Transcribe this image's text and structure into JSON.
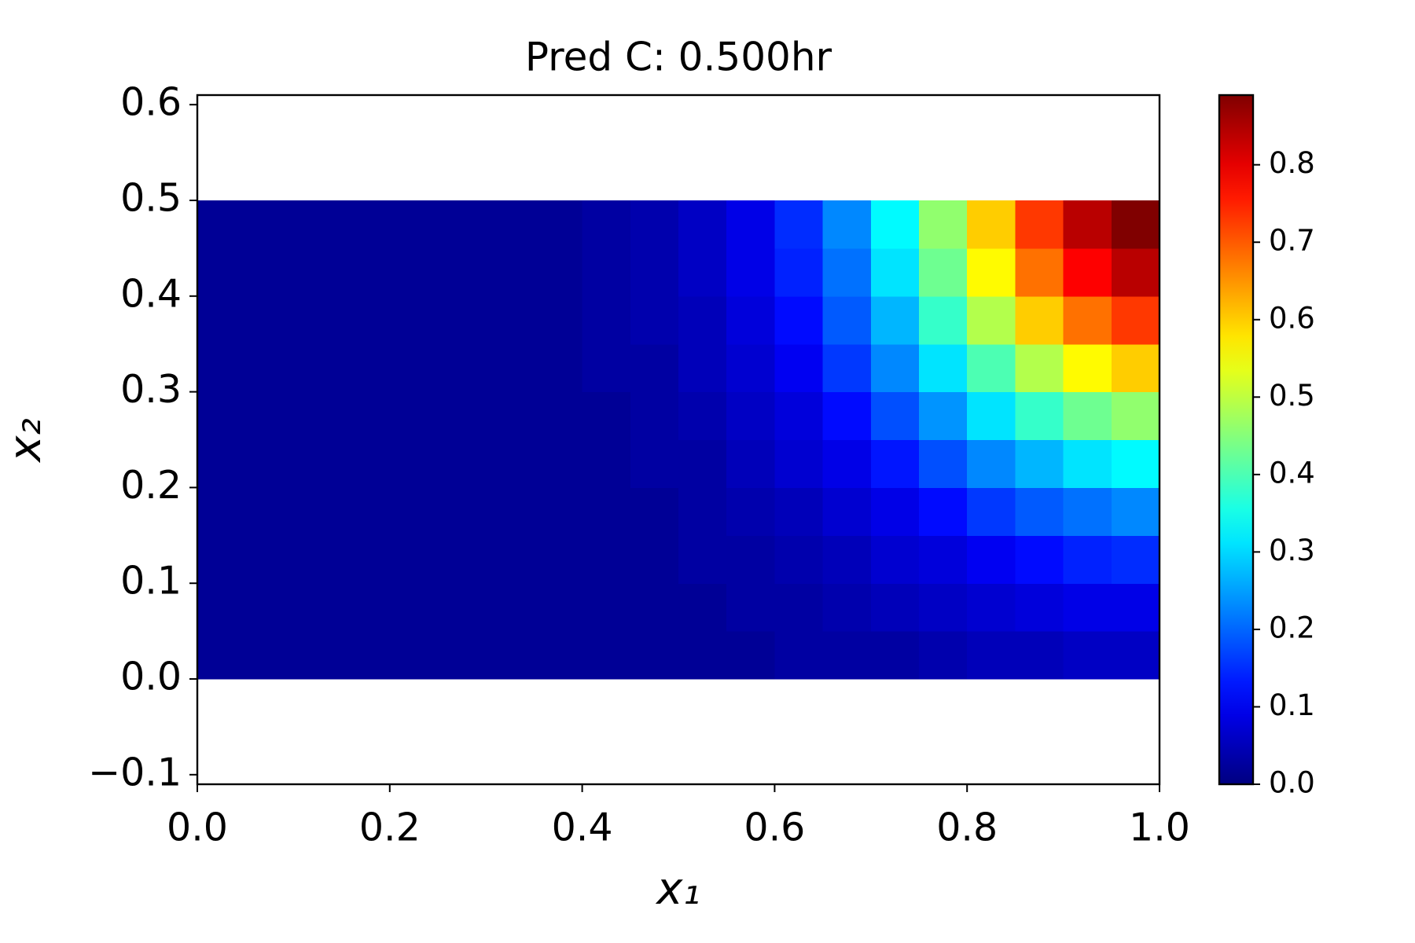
{
  "chart_data": {
    "type": "heatmap",
    "title": "Pred C:  0.500hr",
    "x_label": "x₁",
    "y_label": "x₂",
    "colormap": "jet",
    "x": [
      0.025,
      0.075,
      0.125,
      0.175,
      0.225,
      0.275,
      0.325,
      0.375,
      0.425,
      0.475,
      0.525,
      0.575,
      0.625,
      0.675,
      0.725,
      0.775,
      0.825,
      0.875,
      0.925,
      0.975
    ],
    "y": [
      0.025,
      0.075,
      0.125,
      0.175,
      0.225,
      0.275,
      0.325,
      0.375,
      0.425,
      0.475
    ],
    "z": [
      [
        0.02,
        0.02,
        0.02,
        0.02,
        0.02,
        0.02,
        0.02,
        0.02,
        0.02,
        0.02,
        0.02,
        0.02,
        0.03,
        0.03,
        0.03,
        0.04,
        0.05,
        0.05,
        0.06,
        0.06
      ],
      [
        0.02,
        0.02,
        0.02,
        0.02,
        0.02,
        0.02,
        0.02,
        0.02,
        0.02,
        0.02,
        0.02,
        0.03,
        0.03,
        0.04,
        0.05,
        0.06,
        0.07,
        0.08,
        0.09,
        0.09
      ],
      [
        0.02,
        0.02,
        0.02,
        0.02,
        0.02,
        0.02,
        0.02,
        0.02,
        0.02,
        0.02,
        0.03,
        0.03,
        0.04,
        0.05,
        0.07,
        0.08,
        0.1,
        0.12,
        0.14,
        0.15
      ],
      [
        0.02,
        0.02,
        0.02,
        0.02,
        0.02,
        0.02,
        0.02,
        0.02,
        0.02,
        0.02,
        0.03,
        0.04,
        0.05,
        0.07,
        0.09,
        0.12,
        0.16,
        0.19,
        0.21,
        0.23
      ],
      [
        0.02,
        0.02,
        0.02,
        0.02,
        0.02,
        0.02,
        0.02,
        0.02,
        0.02,
        0.03,
        0.03,
        0.05,
        0.07,
        0.09,
        0.13,
        0.18,
        0.23,
        0.27,
        0.31,
        0.33
      ],
      [
        0.02,
        0.02,
        0.02,
        0.02,
        0.02,
        0.02,
        0.02,
        0.02,
        0.02,
        0.03,
        0.04,
        0.06,
        0.08,
        0.12,
        0.18,
        0.24,
        0.31,
        0.38,
        0.43,
        0.46
      ],
      [
        0.02,
        0.02,
        0.02,
        0.02,
        0.02,
        0.02,
        0.02,
        0.02,
        0.03,
        0.03,
        0.05,
        0.07,
        0.1,
        0.16,
        0.23,
        0.31,
        0.4,
        0.49,
        0.56,
        0.6
      ],
      [
        0.02,
        0.02,
        0.02,
        0.02,
        0.02,
        0.02,
        0.02,
        0.02,
        0.03,
        0.04,
        0.05,
        0.08,
        0.12,
        0.19,
        0.27,
        0.38,
        0.49,
        0.6,
        0.68,
        0.73
      ],
      [
        0.02,
        0.02,
        0.02,
        0.02,
        0.02,
        0.02,
        0.02,
        0.02,
        0.03,
        0.04,
        0.06,
        0.09,
        0.14,
        0.21,
        0.31,
        0.43,
        0.56,
        0.68,
        0.78,
        0.84
      ],
      [
        0.02,
        0.02,
        0.02,
        0.02,
        0.02,
        0.02,
        0.02,
        0.02,
        0.03,
        0.04,
        0.06,
        0.09,
        0.15,
        0.23,
        0.33,
        0.46,
        0.6,
        0.73,
        0.84,
        0.89
      ]
    ],
    "xlim": [
      0,
      1
    ],
    "ylim": [
      -0.11,
      0.61
    ],
    "xticks": [
      {
        "value": 0,
        "label": "0.0"
      },
      {
        "value": 0.2,
        "label": "0.2"
      },
      {
        "value": 0.4,
        "label": "0.4"
      },
      {
        "value": 0.6,
        "label": "0.6"
      },
      {
        "value": 0.8,
        "label": "0.8"
      },
      {
        "value": 1,
        "label": "1.0"
      }
    ],
    "yticks": [
      {
        "value": -0.1,
        "label": "−0.1"
      },
      {
        "value": 0,
        "label": "0.0"
      },
      {
        "value": 0.1,
        "label": "0.1"
      },
      {
        "value": 0.2,
        "label": "0.2"
      },
      {
        "value": 0.3,
        "label": "0.3"
      },
      {
        "value": 0.4,
        "label": "0.4"
      },
      {
        "value": 0.5,
        "label": "0.5"
      },
      {
        "value": 0.6,
        "label": "0.6"
      }
    ],
    "clim": [
      0,
      0.89
    ],
    "cticks": [
      {
        "value": 0,
        "label": "0.0"
      },
      {
        "value": 0.1,
        "label": "0.1"
      },
      {
        "value": 0.2,
        "label": "0.2"
      },
      {
        "value": 0.3,
        "label": "0.3"
      },
      {
        "value": 0.4,
        "label": "0.4"
      },
      {
        "value": 0.5,
        "label": "0.5"
      },
      {
        "value": 0.6,
        "label": "0.6"
      },
      {
        "value": 0.7,
        "label": "0.7"
      },
      {
        "value": 0.8,
        "label": "0.8"
      }
    ]
  }
}
